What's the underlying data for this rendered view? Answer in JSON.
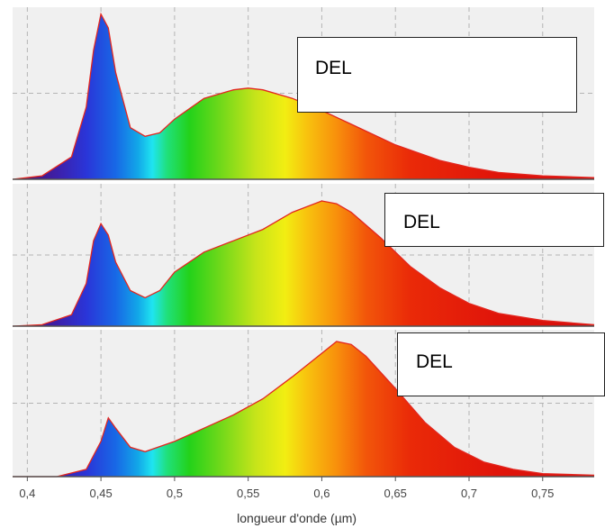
{
  "chart_data": {
    "type": "area",
    "xlabel": "longueur d'onde (µm)",
    "xlim": [
      0.39,
      0.785
    ],
    "xticks": [
      {
        "value": 0.4,
        "label": "0,4"
      },
      {
        "value": 0.45,
        "label": "0,45"
      },
      {
        "value": 0.5,
        "label": "0,5"
      },
      {
        "value": 0.55,
        "label": "0,55"
      },
      {
        "value": 0.6,
        "label": "0,6"
      },
      {
        "value": 0.65,
        "label": "0,65"
      },
      {
        "value": 0.7,
        "label": "0,7"
      },
      {
        "value": 0.75,
        "label": "0,75"
      }
    ],
    "grid": true,
    "fill": "spectrum (visible-light colours by wavelength)",
    "panels": [
      {
        "label": "DEL",
        "ylim": [
          0,
          1
        ],
        "x": [
          0.39,
          0.41,
          0.43,
          0.44,
          0.445,
          0.45,
          0.455,
          0.46,
          0.47,
          0.48,
          0.49,
          0.5,
          0.52,
          0.54,
          0.55,
          0.56,
          0.58,
          0.6,
          0.62,
          0.65,
          0.68,
          0.7,
          0.72,
          0.75,
          0.785
        ],
        "y": [
          0.0,
          0.02,
          0.13,
          0.42,
          0.75,
          0.96,
          0.88,
          0.62,
          0.3,
          0.25,
          0.27,
          0.35,
          0.47,
          0.52,
          0.53,
          0.52,
          0.47,
          0.4,
          0.32,
          0.2,
          0.11,
          0.07,
          0.04,
          0.02,
          0.01
        ]
      },
      {
        "label": "DEL",
        "ylim": [
          0,
          1
        ],
        "x": [
          0.39,
          0.41,
          0.43,
          0.44,
          0.445,
          0.45,
          0.455,
          0.46,
          0.47,
          0.48,
          0.49,
          0.5,
          0.52,
          0.54,
          0.56,
          0.58,
          0.6,
          0.61,
          0.62,
          0.64,
          0.66,
          0.68,
          0.7,
          0.72,
          0.75,
          0.785
        ],
        "y": [
          0.0,
          0.01,
          0.08,
          0.3,
          0.6,
          0.72,
          0.64,
          0.45,
          0.25,
          0.2,
          0.25,
          0.38,
          0.52,
          0.6,
          0.68,
          0.8,
          0.88,
          0.86,
          0.8,
          0.62,
          0.42,
          0.27,
          0.16,
          0.09,
          0.04,
          0.01
        ]
      },
      {
        "label": "DEL",
        "ylim": [
          0,
          1
        ],
        "x": [
          0.39,
          0.42,
          0.44,
          0.45,
          0.455,
          0.46,
          0.47,
          0.48,
          0.5,
          0.52,
          0.54,
          0.56,
          0.58,
          0.6,
          0.61,
          0.62,
          0.63,
          0.65,
          0.67,
          0.69,
          0.71,
          0.73,
          0.75,
          0.785
        ],
        "y": [
          0.0,
          0.0,
          0.05,
          0.24,
          0.4,
          0.33,
          0.2,
          0.17,
          0.24,
          0.33,
          0.42,
          0.53,
          0.68,
          0.84,
          0.92,
          0.9,
          0.82,
          0.6,
          0.37,
          0.2,
          0.1,
          0.05,
          0.02,
          0.01
        ]
      }
    ]
  }
}
